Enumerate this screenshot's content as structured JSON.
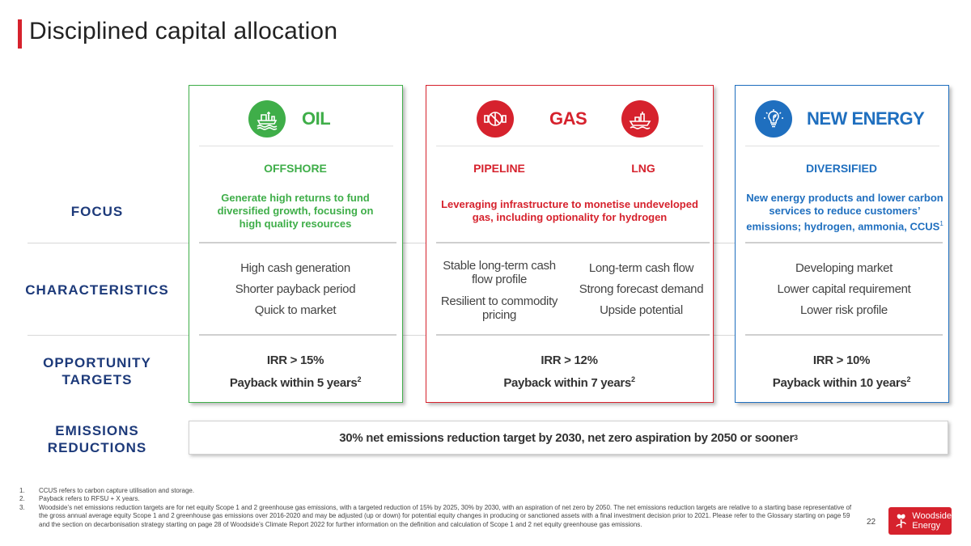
{
  "page": {
    "title": "Disciplined capital allocation",
    "page_number": "22"
  },
  "row_labels": {
    "focus": "FOCUS",
    "characteristics": "CHARACTERISTICS",
    "opportunity_1": "OPPORTUNITY",
    "opportunity_2": "TARGETS",
    "emissions_1": "EMISSIONS",
    "emissions_2": "REDUCTIONS"
  },
  "colors": {
    "oil": "#3fae49",
    "gas": "#d6222d",
    "new_energy": "#1f6fbf",
    "label_navy": "#1d3a7a"
  },
  "oil": {
    "title": "OIL",
    "icon": "offshore-platform-icon",
    "subtitle": "OFFSHORE",
    "focus": "Generate high returns to fund diversified growth, focusing on high quality resources",
    "characteristics": [
      "High cash generation",
      "Shorter payback period",
      "Quick to market"
    ],
    "irr": "IRR > 15%",
    "payback": "Payback within 5 years",
    "payback_note": "2"
  },
  "gas": {
    "title": "GAS",
    "icon_pipeline": "pipeline-valve-icon",
    "icon_lng": "lng-ship-icon",
    "subtitle_pipeline": "PIPELINE",
    "subtitle_lng": "LNG",
    "focus": "Leveraging infrastructure to monetise undeveloped gas, including optionality for hydrogen",
    "characteristics_pipeline": [
      "Stable long-term cash flow profile",
      "Resilient to commodity pricing"
    ],
    "characteristics_lng": [
      "Long-term cash flow",
      "Strong forecast demand",
      "Upside potential"
    ],
    "irr": "IRR > 12%",
    "payback": "Payback within 7 years",
    "payback_note": "2"
  },
  "new_energy": {
    "title": "NEW ENERGY",
    "icon": "lightbulb-leaf-icon",
    "subtitle": "DIVERSIFIED",
    "focus": "New energy products and lower carbon services to reduce customers’ emissions; hydrogen, ammonia, CCUS",
    "focus_note": "1",
    "characteristics": [
      "Developing market",
      "Lower capital requirement",
      "Lower risk profile"
    ],
    "irr": "IRR > 10%",
    "payback": "Payback within 10 years",
    "payback_note": "2"
  },
  "emissions": {
    "text": "30% net emissions reduction target by 2030, net zero aspiration by 2050 or sooner",
    "note": "3"
  },
  "footnotes": [
    {
      "num": "1.",
      "text": "CCUS refers to carbon capture utilisation and storage."
    },
    {
      "num": "2.",
      "text": "Payback refers to RFSU + X years."
    },
    {
      "num": "3.",
      "text": "Woodside’s net emissions reduction targets are for net equity Scope 1 and 2 greenhouse gas emissions, with a targeted reduction of 15% by 2025, 30% by 2030, with an aspiration of net zero by 2050. The net emissions reduction targets are relative to a starting base representative of the gross annual average equity Scope 1 and 2 greenhouse gas emissions over 2016-2020 and may be adjusted (up or down) for potential equity changes in producing or sanctioned assets with a final investment decision prior to 2021. Please refer to the Glossary starting on page 59 and the section on decarbonisation strategy starting on page 28 of Woodside’s Climate Report 2022 for further information on the definition and calculation of Scope 1 and 2 net equity greenhouse gas emissions."
    }
  ],
  "logo": {
    "line1": "Woodside",
    "line2": "Energy",
    "icon": "woodside-logo-icon"
  }
}
